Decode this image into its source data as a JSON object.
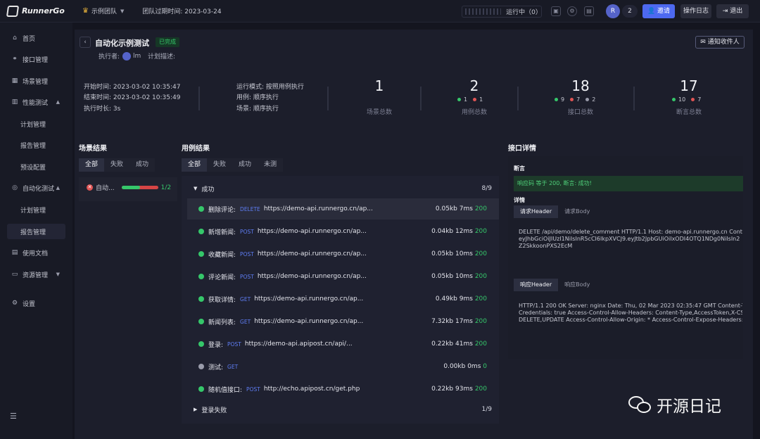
{
  "app": {
    "name": "RunnerGo"
  },
  "topbar": {
    "team": "示例团队",
    "expire": "团队过期时间: 2023-03-24",
    "running": "运行中（0）",
    "avatar_letter": "R",
    "user_count": "2",
    "invite": "邀请",
    "oplog": "操作日志",
    "logout": "退出"
  },
  "sidebar": {
    "items": [
      {
        "label": "首页",
        "icon": "home-icon"
      },
      {
        "label": "接口管理",
        "icon": "link-icon"
      },
      {
        "label": "场景管理",
        "icon": "scene-icon"
      },
      {
        "label": "性能测试",
        "icon": "chart-icon"
      },
      {
        "label": "计划管理"
      },
      {
        "label": "报告管理"
      },
      {
        "label": "预设配置"
      },
      {
        "label": "自动化测试",
        "icon": "robot-icon"
      },
      {
        "label": "计划管理"
      },
      {
        "label": "报告管理"
      },
      {
        "label": "使用文档",
        "icon": "doc-icon"
      },
      {
        "label": "资源管理",
        "icon": "server-icon"
      },
      {
        "label": "设置",
        "icon": "gear-icon"
      }
    ]
  },
  "header": {
    "title": "自动化示例测试",
    "status": "已完成",
    "executor_label": "执行者:",
    "executor_name": "lm",
    "plan_desc_label": "计划描述:",
    "notify": "通知收件人"
  },
  "summary": {
    "start": "开始时间:  2023-03-02 10:35:47",
    "end": "结束时间:  2023-03-02 10:35:49",
    "duration": "执行时长:  3s",
    "mode": "运行模式:  按照用例执行",
    "case_mode": "用例:  顺序执行",
    "scene_mode": "场景:  顺序执行",
    "stats": [
      {
        "value": "1",
        "label": "场景总数"
      },
      {
        "value": "2",
        "label": "用例总数",
        "dots": [
          {
            "n": "1",
            "color": "#35c76a"
          },
          {
            "n": "1",
            "color": "#e05454"
          }
        ]
      },
      {
        "value": "18",
        "label": "接口总数",
        "dots": [
          {
            "n": "9",
            "color": "#35c76a"
          },
          {
            "n": "7",
            "color": "#e05454"
          },
          {
            "n": "2",
            "color": "#9a9cab"
          }
        ]
      },
      {
        "value": "17",
        "label": "断言总数",
        "dots": [
          {
            "n": "10",
            "color": "#35c76a"
          },
          {
            "n": "7",
            "color": "#e05454"
          }
        ]
      }
    ]
  },
  "scene": {
    "title": "场景结果",
    "tabs": [
      "全部",
      "失败",
      "成功"
    ],
    "item": {
      "name": "自动...",
      "progress": "1/2",
      "ratio": 0.5
    }
  },
  "cases": {
    "title": "用例结果",
    "tabs": [
      "全部",
      "失败",
      "成功",
      "未测"
    ],
    "group_success": {
      "label": "成功",
      "count": "8/9"
    },
    "group_fail": {
      "label": "登录失败",
      "count": "1/9"
    },
    "rows": [
      {
        "name": "删除评论:",
        "method": "DELETE",
        "url": "https://demo-api.runnergo.cn/ap...",
        "size": "0.05kb",
        "time": "7ms",
        "code": "200",
        "status": "ok"
      },
      {
        "name": "新增新闻:",
        "method": "POST",
        "url": "https://demo-api.runnergo.cn/ap...",
        "size": "0.04kb",
        "time": "12ms",
        "code": "200",
        "status": "ok"
      },
      {
        "name": "收藏新闻:",
        "method": "POST",
        "url": "https://demo-api.runnergo.cn/ap...",
        "size": "0.05kb",
        "time": "10ms",
        "code": "200",
        "status": "ok"
      },
      {
        "name": "评论新闻:",
        "method": "POST",
        "url": "https://demo-api.runnergo.cn/ap...",
        "size": "0.05kb",
        "time": "10ms",
        "code": "200",
        "status": "ok"
      },
      {
        "name": "获取详情:",
        "method": "GET",
        "url": "https://demo-api.runnergo.cn/ap...",
        "size": "0.49kb",
        "time": "9ms",
        "code": "200",
        "status": "ok"
      },
      {
        "name": "新闻列表:",
        "method": "GET",
        "url": "https://demo-api.runnergo.cn/ap...",
        "size": "7.32kb",
        "time": "17ms",
        "code": "200",
        "status": "ok"
      },
      {
        "name": "登录:",
        "method": "POST",
        "url": "https://demo-api.apipost.cn/api/...",
        "size": "0.22kb",
        "time": "41ms",
        "code": "200",
        "status": "ok"
      },
      {
        "name": "测试:",
        "method": "GET",
        "url": "",
        "size": "0.00kb",
        "time": "0ms",
        "code": "0",
        "status": "skip"
      },
      {
        "name": "随机值接口:",
        "method": "POST",
        "url": "http://echo.apipost.cn/get.php",
        "size": "0.22kb",
        "time": "93ms",
        "code": "200",
        "status": "ok"
      }
    ]
  },
  "detail": {
    "title": "接口详情",
    "assert_label": "断言",
    "assert_text": "响应码 等于 200, 断言: 成功!",
    "detail_label": "详情",
    "req_tabs": [
      "请求Header",
      "请求Body"
    ],
    "req_text": [
      "DELETE /api/demo/delete_comment HTTP/1.1 Host: demo-api.runnergo.cn Content-",
      "eyJhbGciOiJIUzI1NiIsInR5cCI6IkpXVCJ9.eyJtb2JpbGUiOiIxODI4OTQ1NDg0NiIsIn2",
      "Z2SkkoonPXS2EcM"
    ],
    "resp_tabs": [
      "响应Header",
      "响应Body"
    ],
    "resp_text": [
      "HTTP/1.1 200 OK Server: nginx Date: Thu, 02 Mar 2023 02:35:47 GMT Content-Ty",
      "Credentials: true Access-Control-Allow-Headers: Content-Type,AccessToken,X-CS",
      "DELETE,UPDATE Access-Control-Allow-Origin: * Access-Control-Expose-Headers:"
    ]
  },
  "watermark": "开源日记"
}
